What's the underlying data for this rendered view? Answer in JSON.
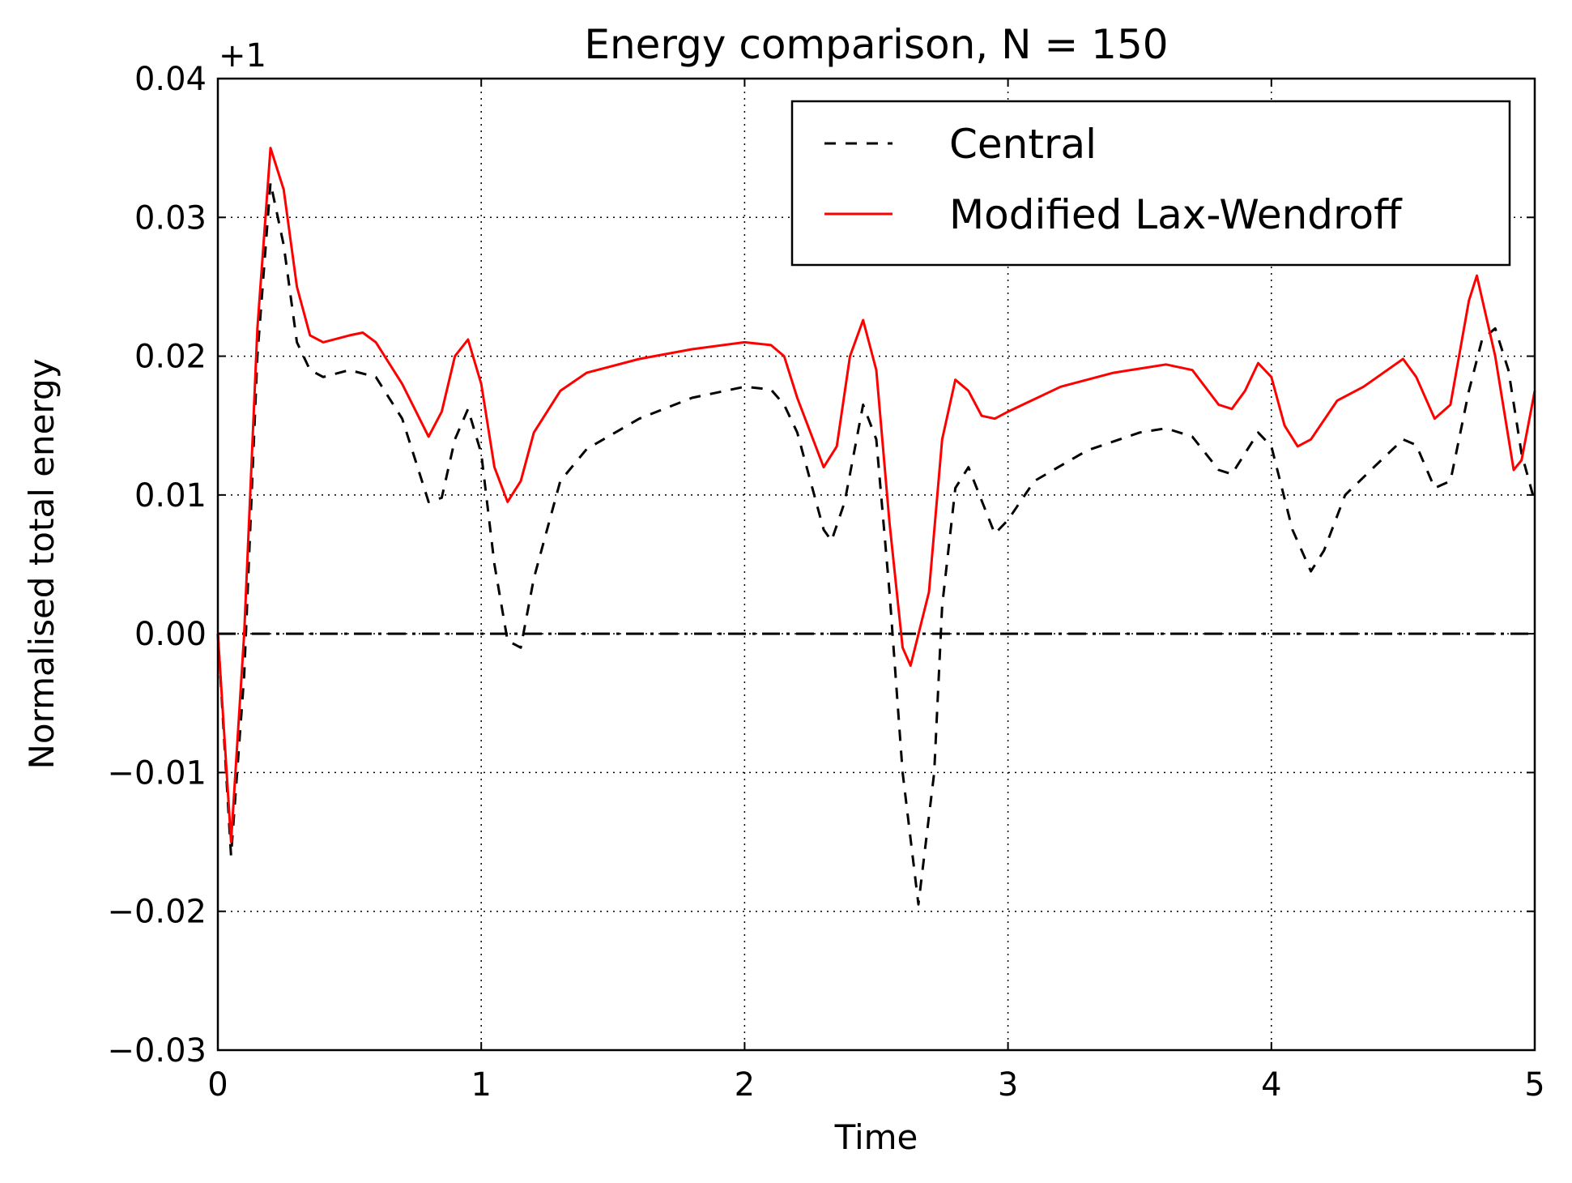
{
  "chart_data": {
    "type": "line",
    "title": "Energy comparison, N = 150",
    "xlabel": "Time",
    "ylabel": "Normalised total energy",
    "offset_label": "+1",
    "xlim": [
      0,
      5
    ],
    "xticks": [
      0,
      1,
      2,
      3,
      4,
      5
    ],
    "ylim": [
      -0.03,
      0.04
    ],
    "yticks": [
      {
        "value": -0.03,
        "label": "−0.03"
      },
      {
        "value": -0.02,
        "label": "−0.02"
      },
      {
        "value": -0.01,
        "label": "−0.01"
      },
      {
        "value": 0,
        "label": "0.00"
      },
      0.01,
      0.02,
      0.03,
      0.04
    ],
    "grid": true,
    "legend": "upper right",
    "hline": 0,
    "series": [
      {
        "name": "Central",
        "color": "#000000",
        "dash": "dashed",
        "x": [
          0,
          0.05,
          0.1,
          0.15,
          0.2,
          0.25,
          0.3,
          0.35,
          0.4,
          0.5,
          0.6,
          0.7,
          0.8,
          0.85,
          0.9,
          0.95,
          1.0,
          1.05,
          1.1,
          1.15,
          1.2,
          1.3,
          1.4,
          1.6,
          1.8,
          2.0,
          2.1,
          2.15,
          2.2,
          2.3,
          2.33,
          2.38,
          2.45,
          2.5,
          2.55,
          2.6,
          2.66,
          2.72,
          2.75,
          2.8,
          2.85,
          2.95,
          3.0,
          3.1,
          3.3,
          3.5,
          3.6,
          3.7,
          3.8,
          3.85,
          3.95,
          4.0,
          4.08,
          4.15,
          4.2,
          4.28,
          4.4,
          4.5,
          4.55,
          4.62,
          4.68,
          4.75,
          4.8,
          4.85,
          4.9,
          4.95,
          5.0
        ],
        "values": [
          0,
          -0.016,
          -0.003,
          0.02,
          0.0325,
          0.028,
          0.021,
          0.019,
          0.0185,
          0.019,
          0.0185,
          0.0155,
          0.0095,
          0.0098,
          0.014,
          0.0162,
          0.013,
          0.005,
          -0.0005,
          -0.001,
          0.004,
          0.011,
          0.0133,
          0.0155,
          0.017,
          0.0178,
          0.0176,
          0.0165,
          0.0145,
          0.0075,
          0.0067,
          0.0095,
          0.0165,
          0.014,
          0.003,
          -0.01,
          -0.0195,
          -0.01,
          0.002,
          0.0105,
          0.012,
          0.0072,
          0.0082,
          0.011,
          0.0132,
          0.0145,
          0.0148,
          0.0142,
          0.0118,
          0.0115,
          0.0145,
          0.0135,
          0.0075,
          0.0045,
          0.006,
          0.01,
          0.0122,
          0.014,
          0.0136,
          0.0105,
          0.011,
          0.0175,
          0.0212,
          0.022,
          0.019,
          0.013,
          0.0095
        ]
      },
      {
        "name": "Modified Lax-Wendroff",
        "color": "#ff0000",
        "dash": "solid",
        "x": [
          0,
          0.05,
          0.1,
          0.15,
          0.2,
          0.25,
          0.3,
          0.35,
          0.4,
          0.5,
          0.55,
          0.6,
          0.7,
          0.8,
          0.85,
          0.9,
          0.95,
          1.0,
          1.05,
          1.1,
          1.15,
          1.2,
          1.3,
          1.4,
          1.6,
          1.8,
          2.0,
          2.1,
          2.15,
          2.2,
          2.3,
          2.35,
          2.4,
          2.45,
          2.5,
          2.55,
          2.6,
          2.63,
          2.7,
          2.75,
          2.8,
          2.85,
          2.9,
          2.95,
          3.0,
          3.2,
          3.4,
          3.6,
          3.7,
          3.8,
          3.85,
          3.9,
          3.95,
          4.0,
          4.05,
          4.1,
          4.15,
          4.25,
          4.35,
          4.5,
          4.55,
          4.62,
          4.68,
          4.75,
          4.78,
          4.85,
          4.92,
          4.95,
          5.0
        ],
        "values": [
          0,
          -0.015,
          0,
          0.022,
          0.035,
          0.032,
          0.025,
          0.0215,
          0.021,
          0.0215,
          0.0217,
          0.021,
          0.018,
          0.0142,
          0.016,
          0.02,
          0.0212,
          0.018,
          0.012,
          0.0095,
          0.011,
          0.0145,
          0.0175,
          0.0188,
          0.0198,
          0.0205,
          0.021,
          0.0208,
          0.02,
          0.017,
          0.012,
          0.0135,
          0.02,
          0.0226,
          0.019,
          0.008,
          -0.001,
          -0.0023,
          0.003,
          0.014,
          0.0183,
          0.0175,
          0.0157,
          0.0155,
          0.016,
          0.0178,
          0.0188,
          0.0194,
          0.019,
          0.0165,
          0.0162,
          0.0175,
          0.0195,
          0.0185,
          0.015,
          0.0135,
          0.014,
          0.0168,
          0.0178,
          0.0198,
          0.0185,
          0.0155,
          0.0165,
          0.024,
          0.0258,
          0.02,
          0.0118,
          0.0125,
          0.0175
        ]
      }
    ]
  }
}
